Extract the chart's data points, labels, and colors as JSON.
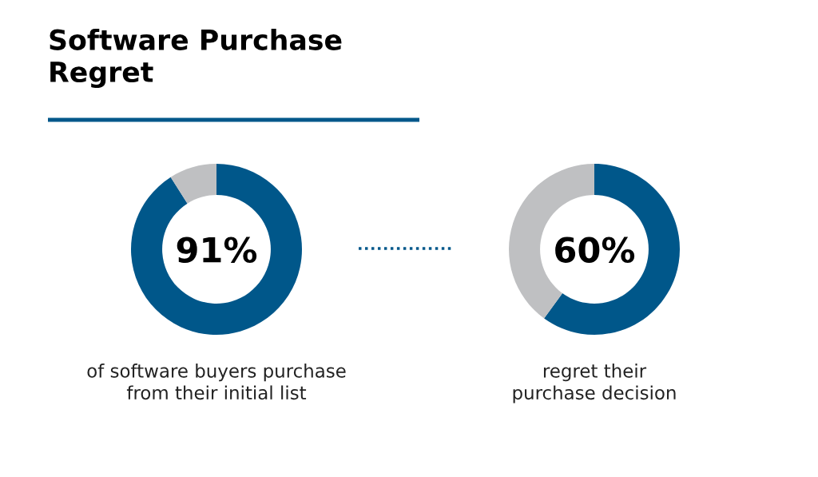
{
  "chart_data": [
    {
      "type": "donut",
      "title": "Software Purchase\nRegret",
      "categories": [
        null,
        null
      ],
      "values": [
        91,
        9
      ],
      "colors": [
        "#00578a",
        "#bfc0c2"
      ],
      "value_labels": [
        "91%",
        null
      ],
      "annotations": [
        "of software buyers purchase\nfrom their initial list"
      ]
    },
    {
      "type": "donut",
      "categories": [
        null,
        null
      ],
      "values": [
        60,
        40
      ],
      "colors": [
        "#00578a",
        "#bfc0c2"
      ],
      "value_labels": [
        "60%",
        null
      ],
      "annotations": [
        "regret their\npurchase decision"
      ]
    }
  ]
}
